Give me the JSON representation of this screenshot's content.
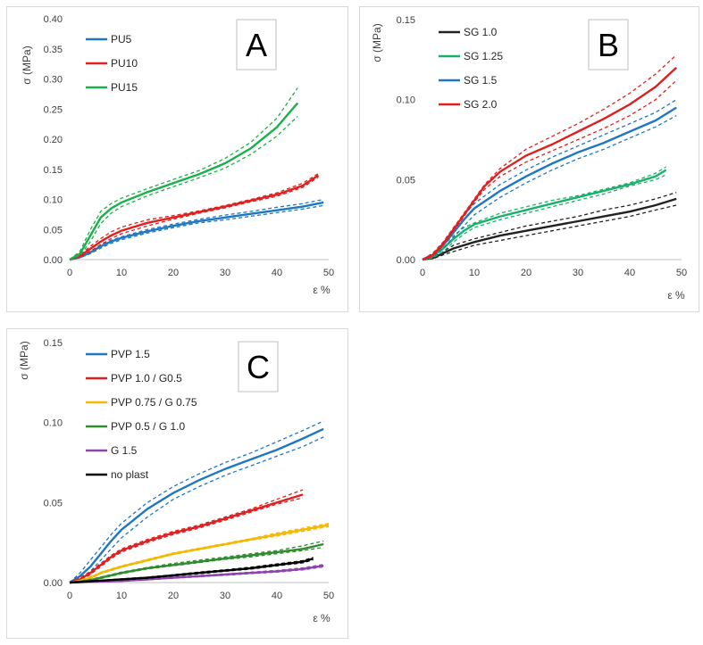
{
  "chart_data": [
    {
      "type": "line",
      "panel_label": "A",
      "xlabel": "ε %",
      "ylabel": "σ (MPa)",
      "xlim": [
        0,
        50
      ],
      "ylim": [
        0,
        0.4
      ],
      "x_ticks": [
        "0",
        "10",
        "20",
        "30",
        "40",
        "50"
      ],
      "y_ticks": [
        "0.00",
        "0.05",
        "0.10",
        "0.15",
        "0.20",
        "0.25",
        "0.30",
        "0.35",
        "0.40"
      ],
      "x_tick_values": [
        0,
        10,
        20,
        30,
        40,
        50
      ],
      "y_tick_values": [
        0,
        0.05,
        0.1,
        0.15,
        0.2,
        0.25,
        0.3,
        0.35,
        0.4
      ],
      "legend_position": "top-left",
      "series": [
        {
          "name": "PU5",
          "color": "#1f77c4",
          "x": [
            0,
            2,
            4,
            6,
            8,
            10,
            15,
            20,
            25,
            30,
            35,
            40,
            45,
            49
          ],
          "y": [
            0,
            0.004,
            0.012,
            0.022,
            0.03,
            0.036,
            0.047,
            0.056,
            0.064,
            0.07,
            0.076,
            0.082,
            0.088,
            0.095
          ],
          "upper": [
            0,
            0.005,
            0.014,
            0.024,
            0.032,
            0.038,
            0.05,
            0.059,
            0.067,
            0.074,
            0.08,
            0.087,
            0.093,
            0.1
          ],
          "lower": [
            0,
            0.003,
            0.01,
            0.019,
            0.027,
            0.033,
            0.044,
            0.053,
            0.061,
            0.066,
            0.072,
            0.078,
            0.084,
            0.09
          ]
        },
        {
          "name": "PU10",
          "color": "#e02020",
          "x": [
            0,
            2,
            4,
            6,
            8,
            10,
            15,
            20,
            25,
            30,
            35,
            40,
            45,
            48
          ],
          "y": [
            0,
            0.006,
            0.018,
            0.03,
            0.04,
            0.048,
            0.061,
            0.07,
            0.079,
            0.088,
            0.098,
            0.108,
            0.123,
            0.14
          ],
          "upper": [
            0,
            0.008,
            0.022,
            0.035,
            0.046,
            0.054,
            0.066,
            0.073,
            0.081,
            0.09,
            0.1,
            0.111,
            0.127,
            0.143
          ],
          "lower": [
            0,
            0.004,
            0.014,
            0.025,
            0.035,
            0.043,
            0.056,
            0.067,
            0.077,
            0.086,
            0.096,
            0.105,
            0.12,
            0.137
          ]
        },
        {
          "name": "PU15",
          "color": "#19b04a",
          "x": [
            0,
            2,
            4,
            6,
            8,
            10,
            15,
            20,
            25,
            30,
            35,
            40,
            44
          ],
          "y": [
            0,
            0.01,
            0.04,
            0.07,
            0.085,
            0.095,
            0.112,
            0.127,
            0.142,
            0.16,
            0.185,
            0.22,
            0.26
          ],
          "upper": [
            0,
            0.014,
            0.05,
            0.08,
            0.093,
            0.102,
            0.118,
            0.133,
            0.148,
            0.168,
            0.195,
            0.235,
            0.285
          ],
          "lower": [
            0,
            0.007,
            0.03,
            0.06,
            0.077,
            0.088,
            0.106,
            0.121,
            0.136,
            0.152,
            0.175,
            0.205,
            0.238
          ]
        }
      ]
    },
    {
      "type": "line",
      "panel_label": "B",
      "xlabel": "ε %",
      "ylabel": "σ (MPa)",
      "xlim": [
        0,
        50
      ],
      "ylim": [
        0,
        0.15
      ],
      "x_ticks": [
        "0",
        "10",
        "20",
        "30",
        "40",
        "50"
      ],
      "y_ticks": [
        "0.00",
        "0.05",
        "0.10",
        "0.15"
      ],
      "x_tick_values": [
        0,
        10,
        20,
        30,
        40,
        50
      ],
      "y_tick_values": [
        0,
        0.05,
        0.1,
        0.15
      ],
      "legend_position": "top-left",
      "series": [
        {
          "name": "SG 1.0",
          "color": "#222222",
          "x": [
            0,
            2,
            4,
            6,
            8,
            10,
            15,
            20,
            25,
            30,
            35,
            40,
            45,
            49
          ],
          "y": [
            0,
            0.001,
            0.004,
            0.007,
            0.009,
            0.011,
            0.015,
            0.018,
            0.021,
            0.024,
            0.027,
            0.03,
            0.034,
            0.038
          ],
          "upper": [
            0,
            0.002,
            0.005,
            0.009,
            0.011,
            0.013,
            0.017,
            0.021,
            0.024,
            0.027,
            0.031,
            0.034,
            0.038,
            0.042
          ],
          "lower": [
            0,
            0.0005,
            0.003,
            0.005,
            0.007,
            0.009,
            0.012,
            0.015,
            0.018,
            0.021,
            0.024,
            0.027,
            0.031,
            0.034
          ]
        },
        {
          "name": "SG 1.25",
          "color": "#19b06a",
          "x": [
            0,
            2,
            4,
            6,
            8,
            10,
            15,
            20,
            25,
            30,
            35,
            40,
            45,
            47
          ],
          "y": [
            0,
            0.002,
            0.007,
            0.013,
            0.018,
            0.022,
            0.027,
            0.031,
            0.035,
            0.039,
            0.043,
            0.047,
            0.052,
            0.056
          ],
          "upper": [
            0,
            0.003,
            0.009,
            0.015,
            0.02,
            0.023,
            0.029,
            0.033,
            0.037,
            0.04,
            0.044,
            0.048,
            0.054,
            0.058
          ],
          "lower": [
            0,
            0.001,
            0.005,
            0.011,
            0.016,
            0.02,
            0.025,
            0.029,
            0.033,
            0.037,
            0.041,
            0.046,
            0.05,
            0.053
          ]
        },
        {
          "name": "SG 1.5",
          "color": "#1f77c4",
          "x": [
            0,
            2,
            4,
            6,
            8,
            10,
            15,
            20,
            25,
            30,
            35,
            40,
            45,
            49
          ],
          "y": [
            0,
            0.003,
            0.009,
            0.017,
            0.025,
            0.032,
            0.043,
            0.052,
            0.06,
            0.067,
            0.073,
            0.08,
            0.087,
            0.095
          ],
          "upper": [
            0,
            0.004,
            0.011,
            0.02,
            0.028,
            0.035,
            0.047,
            0.056,
            0.064,
            0.071,
            0.078,
            0.085,
            0.092,
            0.1
          ],
          "lower": [
            0,
            0.002,
            0.007,
            0.014,
            0.021,
            0.028,
            0.039,
            0.048,
            0.056,
            0.063,
            0.069,
            0.076,
            0.083,
            0.09
          ]
        },
        {
          "name": "SG 2.0",
          "color": "#e02020",
          "x": [
            0,
            2,
            4,
            6,
            8,
            10,
            12,
            15,
            20,
            25,
            30,
            35,
            40,
            45,
            49
          ],
          "y": [
            0,
            0.003,
            0.01,
            0.019,
            0.028,
            0.037,
            0.046,
            0.055,
            0.065,
            0.072,
            0.08,
            0.088,
            0.097,
            0.108,
            0.12
          ],
          "upper": [
            0,
            0.004,
            0.011,
            0.02,
            0.029,
            0.038,
            0.047,
            0.057,
            0.069,
            0.077,
            0.085,
            0.094,
            0.104,
            0.116,
            0.128
          ],
          "lower": [
            0,
            0.002,
            0.009,
            0.018,
            0.027,
            0.036,
            0.044,
            0.052,
            0.061,
            0.068,
            0.075,
            0.082,
            0.09,
            0.1,
            0.112
          ]
        }
      ]
    },
    {
      "type": "line",
      "panel_label": "C",
      "xlabel": "ε %",
      "ylabel": "σ (MPa)",
      "xlim": [
        0,
        50
      ],
      "ylim": [
        0,
        0.15
      ],
      "x_ticks": [
        "0",
        "10",
        "20",
        "30",
        "40",
        "50"
      ],
      "y_ticks": [
        "0.00",
        "0.05",
        "0.10",
        "0.15"
      ],
      "x_tick_values": [
        0,
        10,
        20,
        30,
        40,
        50
      ],
      "y_tick_values": [
        0,
        0.05,
        0.1,
        0.15
      ],
      "legend_position": "top-left",
      "series": [
        {
          "name": "PVP 1.5",
          "color": "#1f77c4",
          "x": [
            0,
            2,
            4,
            6,
            8,
            10,
            15,
            20,
            25,
            30,
            35,
            40,
            45,
            49
          ],
          "y": [
            0,
            0.004,
            0.01,
            0.018,
            0.026,
            0.033,
            0.046,
            0.056,
            0.064,
            0.071,
            0.077,
            0.083,
            0.09,
            0.096
          ],
          "upper": [
            0,
            0.006,
            0.014,
            0.022,
            0.03,
            0.037,
            0.05,
            0.06,
            0.068,
            0.075,
            0.081,
            0.088,
            0.095,
            0.101
          ],
          "lower": [
            0,
            0.002,
            0.007,
            0.014,
            0.021,
            0.028,
            0.041,
            0.052,
            0.06,
            0.067,
            0.073,
            0.079,
            0.085,
            0.091
          ]
        },
        {
          "name": "PVP 1.0 / G0.5",
          "color": "#e02020",
          "x": [
            0,
            2,
            4,
            6,
            8,
            10,
            15,
            20,
            25,
            30,
            35,
            40,
            45
          ],
          "y": [
            0,
            0.002,
            0.006,
            0.011,
            0.016,
            0.02,
            0.026,
            0.031,
            0.035,
            0.04,
            0.045,
            0.05,
            0.055
          ],
          "upper": [
            0,
            0.003,
            0.007,
            0.012,
            0.017,
            0.021,
            0.027,
            0.032,
            0.036,
            0.041,
            0.046,
            0.052,
            0.058
          ],
          "lower": [
            0,
            0.001,
            0.005,
            0.01,
            0.015,
            0.019,
            0.025,
            0.03,
            0.034,
            0.039,
            0.044,
            0.049,
            0.053
          ]
        },
        {
          "name": "PVP 0.75 / G 0.75",
          "color": "#f5b800",
          "x": [
            0,
            2,
            4,
            6,
            8,
            10,
            15,
            20,
            25,
            30,
            35,
            40,
            45,
            50
          ],
          "y": [
            0,
            0.001,
            0.003,
            0.006,
            0.008,
            0.01,
            0.014,
            0.018,
            0.021,
            0.024,
            0.027,
            0.03,
            0.033,
            0.036
          ],
          "upper": [
            0,
            0.0015,
            0.0035,
            0.0065,
            0.0085,
            0.0105,
            0.0145,
            0.0185,
            0.0215,
            0.0245,
            0.0275,
            0.031,
            0.034,
            0.037
          ],
          "lower": [
            0,
            0.0005,
            0.0025,
            0.0055,
            0.0075,
            0.0095,
            0.0135,
            0.0175,
            0.0205,
            0.0235,
            0.0265,
            0.029,
            0.032,
            0.035
          ]
        },
        {
          "name": "PVP 0.5 / G 1.0",
          "color": "#2e8b2e",
          "x": [
            0,
            2,
            4,
            6,
            8,
            10,
            15,
            20,
            25,
            30,
            35,
            40,
            45,
            49
          ],
          "y": [
            0,
            0.0005,
            0.0015,
            0.003,
            0.0045,
            0.006,
            0.009,
            0.011,
            0.013,
            0.015,
            0.017,
            0.019,
            0.021,
            0.024
          ],
          "upper": [
            0,
            0.001,
            0.002,
            0.0035,
            0.005,
            0.0065,
            0.0095,
            0.012,
            0.014,
            0.016,
            0.018,
            0.02,
            0.023,
            0.026
          ],
          "lower": [
            0,
            0.0003,
            0.001,
            0.0025,
            0.004,
            0.0055,
            0.0085,
            0.0105,
            0.0125,
            0.0145,
            0.016,
            0.018,
            0.02,
            0.022
          ]
        },
        {
          "name": "G 1.5",
          "color": "#8e44ad",
          "x": [
            0,
            5,
            10,
            15,
            20,
            25,
            30,
            35,
            40,
            45,
            49
          ],
          "y": [
            0,
            0.0005,
            0.001,
            0.002,
            0.003,
            0.004,
            0.005,
            0.006,
            0.007,
            0.0085,
            0.0105
          ],
          "upper": [
            0,
            0.0007,
            0.0013,
            0.0023,
            0.0034,
            0.0044,
            0.0054,
            0.0065,
            0.0076,
            0.0092,
            0.0113
          ],
          "lower": [
            0,
            0.0003,
            0.0008,
            0.0017,
            0.0027,
            0.0036,
            0.0046,
            0.0056,
            0.0065,
            0.0079,
            0.0098
          ]
        },
        {
          "name": "no plast",
          "color": "#000000",
          "x": [
            0,
            5,
            10,
            15,
            20,
            25,
            30,
            35,
            40,
            45,
            47
          ],
          "y": [
            0,
            0.001,
            0.002,
            0.003,
            0.0045,
            0.006,
            0.0075,
            0.009,
            0.011,
            0.013,
            0.015
          ],
          "upper": [
            0,
            0.0012,
            0.0023,
            0.0034,
            0.0049,
            0.0065,
            0.008,
            0.0096,
            0.0116,
            0.0137,
            0.0157
          ],
          "lower": [
            0,
            0.0008,
            0.0017,
            0.0026,
            0.0041,
            0.0055,
            0.007,
            0.0084,
            0.0104,
            0.0123,
            0.0143
          ]
        }
      ]
    }
  ]
}
